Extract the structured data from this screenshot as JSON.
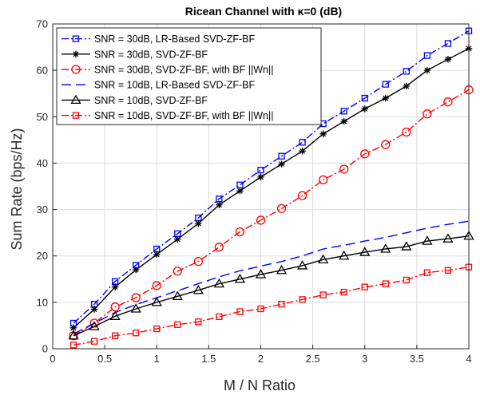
{
  "chart_data": {
    "type": "line",
    "title": "Ricean Channel with  κ=0 (dB)",
    "xlabel": "M / N Ratio",
    "ylabel": "Sum Rate (bps/Hz)",
    "xlim": [
      0,
      4
    ],
    "ylim": [
      0,
      70
    ],
    "xticks": [
      "0",
      "0.5",
      "1",
      "1.5",
      "2",
      "2.5",
      "3",
      "3.5",
      "4"
    ],
    "yticks": [
      "0",
      "10",
      "20",
      "30",
      "40",
      "50",
      "60",
      "70"
    ],
    "grid": true,
    "legend_position": "top-left",
    "x": [
      0.2,
      0.4,
      0.6,
      0.8,
      1.0,
      1.2,
      1.4,
      1.6,
      1.8,
      2.0,
      2.2,
      2.4,
      2.6,
      2.8,
      3.0,
      3.2,
      3.4,
      3.6,
      3.8,
      4.0
    ],
    "series": [
      {
        "name": "SNR = 30dB,  LR-Based SVD-ZF-BF",
        "color": "#0000ff",
        "dash": "dashdot",
        "marker": "square",
        "values": [
          5.5,
          9.6,
          14.5,
          18.0,
          21.5,
          24.8,
          28.2,
          32.3,
          35.3,
          38.5,
          41.5,
          44.5,
          48.5,
          51.2,
          54.0,
          57.0,
          59.8,
          63.2,
          65.8,
          68.5
        ]
      },
      {
        "name": "SNR = 30dB,  SVD-ZF-BF",
        "color": "#000000",
        "dash": "solid",
        "marker": "star",
        "values": [
          4.5,
          8.5,
          13.3,
          17.0,
          20.3,
          23.6,
          27.0,
          31.0,
          34.0,
          37.0,
          39.8,
          42.6,
          46.3,
          49.0,
          51.7,
          54.0,
          56.6,
          60.0,
          62.4,
          64.7
        ]
      },
      {
        "name": "SNR = 30dB,  SVD-ZF-BF, with BF  ||Wn||",
        "color": "#ff0000",
        "dash": "dashdot",
        "marker": "circle",
        "values": [
          2.8,
          5.5,
          9.0,
          11.0,
          13.6,
          16.7,
          18.8,
          21.9,
          25.2,
          27.7,
          30.2,
          33.0,
          36.4,
          38.7,
          42.0,
          44.0,
          46.7,
          50.6,
          53.2,
          55.8
        ]
      },
      {
        "name": "SNR = 10dB,  LR-Based SVD-ZF-BF",
        "color": "#0000ff",
        "dash": "dashed",
        "marker": "none",
        "values": [
          3.2,
          5.5,
          7.8,
          9.5,
          11.0,
          12.5,
          14.0,
          15.5,
          16.8,
          17.8,
          18.8,
          20.0,
          21.5,
          22.3,
          23.2,
          24.0,
          25.0,
          26.0,
          26.8,
          27.5
        ]
      },
      {
        "name": "SNR = 10dB,  SVD-ZF-BF",
        "color": "#000000",
        "dash": "solid",
        "marker": "triangle",
        "values": [
          2.8,
          4.8,
          7.0,
          8.6,
          10.0,
          11.3,
          12.6,
          14.0,
          15.0,
          16.0,
          16.9,
          17.9,
          19.2,
          20.0,
          20.8,
          21.5,
          22.0,
          23.2,
          23.7,
          24.3
        ]
      },
      {
        "name": "SNR = 10dB,  SVD-ZF-BF, with BF   ||Wn||",
        "color": "#ff0000",
        "dash": "dashdot",
        "marker": "square",
        "values": [
          0.8,
          1.6,
          2.8,
          3.4,
          4.3,
          5.2,
          5.8,
          6.9,
          8.0,
          8.6,
          9.6,
          10.6,
          11.6,
          12.2,
          13.3,
          14.0,
          14.8,
          16.4,
          16.9,
          17.6
        ]
      }
    ]
  }
}
